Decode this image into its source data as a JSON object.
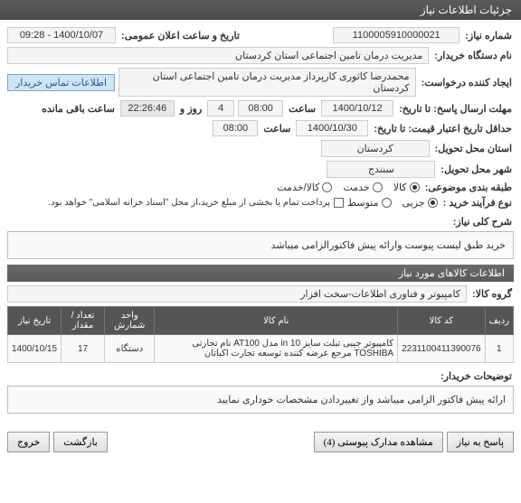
{
  "header": {
    "title": "جزئیات اطلاعات نیاز"
  },
  "fields": {
    "need_number_label": "شماره نیاز:",
    "need_number": "1100005910000021",
    "announce_label": "تاریخ و ساعت اعلان عمومی:",
    "announce_value": "1400/10/07 - 09:28",
    "buyer_org_label": "نام دستگاه خریدار:",
    "buyer_org": "مدیریت درمان تامین اجتماعی استان کردستان",
    "requester_label": "ایجاد کننده درخواست:",
    "requester": "محمدرضا کاثوری کارپرداز مدیریت درمان تامین اجتماعی استان کردستان",
    "contact_btn": "اطلاعات تماس خریدار",
    "deadline_label": "مهلت ارسال پاسخ: تا تاریخ:",
    "deadline_date": "1400/10/12",
    "hour_label": "ساعت",
    "deadline_hour": "08:00",
    "days_count": "4",
    "hour_and": "روز و",
    "remaining": "22:26:46",
    "remaining_label": "ساعت باقی مانده",
    "validity_label": "حداقل تاریخ اعتبار قیمت: تا تاریخ:",
    "validity_date": "1400/10/30",
    "validity_hour": "08:00",
    "province_label": "استان محل تحویل:",
    "province": "کردستان",
    "city_label": "شهر محل تحویل:",
    "city": "سنندج",
    "category_label": "طبقه بندی موضوعی:",
    "cat_goods": "کالا",
    "cat_service": "خدمت",
    "cat_both": "کالا/خدمت",
    "process_label": "نوع فرآیند خرید :",
    "proc_minor": "جزیی",
    "proc_medium": "متوسط",
    "payment_note": "پرداخت تمام یا بخشی از مبلغ خرید،از محل \"اسناد خزانه اسلامی\" خواهد بود.",
    "summary_label": "شرح کلی نیاز:",
    "summary": "خرید طبق لیست پیوست وارائه پیش فاکتورالزامی میباشد",
    "items_section": "اطلاعات کالاهای مورد نیاز",
    "group_label": "گروه کالا:",
    "group": "کامپیوتر و فناوری اطلاعات-سخت افزار",
    "buyer_notes_label": "توضیحات خریدار:",
    "buyer_notes": "ارائه پیش فاکتور الزامی میباشد واز تغییردادن مشخصات خوداری نمایید"
  },
  "table": {
    "headers": {
      "row": "ردیف",
      "code": "کد کالا",
      "name": "نام کالا",
      "unit": "واحد شمارش",
      "qty": "تعداد / مقدار",
      "date": "تاریخ نیاز"
    },
    "rows": [
      {
        "row": "1",
        "code": "2231100411390076",
        "name": "کامپیوتر جیبی تبلت سایز 10 in مدل AT100 نام تجارتی TOSHIBA مرجع عرضه کننده توسعه تجارت اکباتان",
        "unit": "دستگاه",
        "qty": "17",
        "date": "1400/10/15"
      }
    ]
  },
  "footer": {
    "reply": "پاسخ به نیاز",
    "attachments": "مشاهده مدارک پیوستی (4)",
    "back": "بازگشت",
    "exit": "خروج"
  }
}
